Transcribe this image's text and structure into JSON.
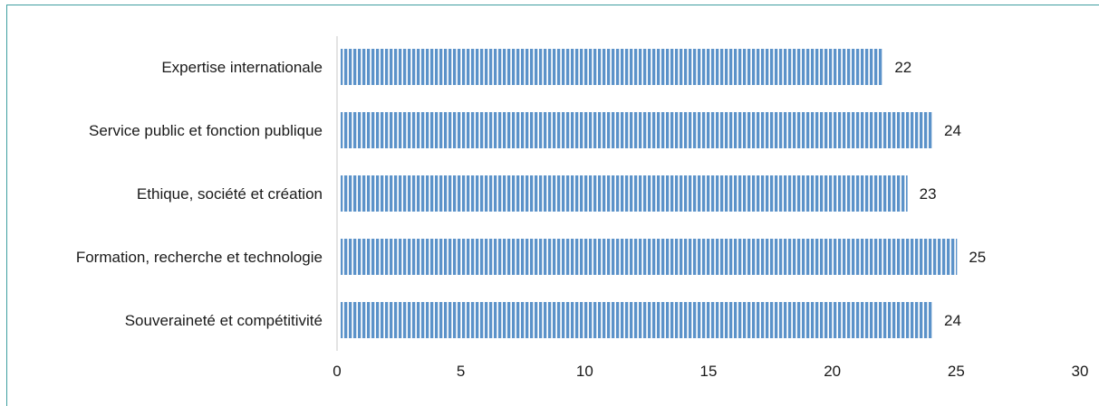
{
  "chart_data": {
    "type": "bar",
    "orientation": "horizontal",
    "categories": [
      "Expertise internationale",
      "Service public et fonction publique",
      "Ethique, société et création",
      "Formation, recherche et technologie",
      "Souveraineté et compétitivité"
    ],
    "values": [
      22,
      24,
      23,
      25,
      24
    ],
    "value_labels": [
      "22",
      "24",
      "23",
      "25",
      "24"
    ],
    "xlim": [
      0,
      30
    ],
    "xticks": [
      0,
      5,
      10,
      15,
      20,
      25,
      30
    ],
    "xtick_labels": [
      "0",
      "5",
      "10",
      "15",
      "20",
      "25",
      "30"
    ],
    "grid": false,
    "bar_color": "#5b92c9",
    "bar_pattern": "vertical-stripes",
    "frame_color": "#3f9ea0"
  }
}
